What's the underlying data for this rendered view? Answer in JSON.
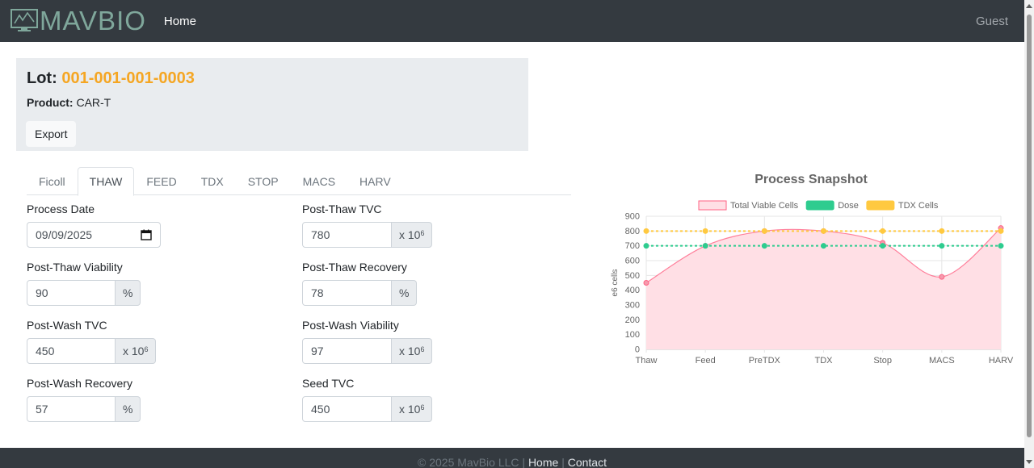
{
  "navbar": {
    "brand": "MAVBIO",
    "home_link": "Home",
    "user": "Guest"
  },
  "lot": {
    "label": "Lot:",
    "number": "001-001-001-0003",
    "product_label": "Product:",
    "product_value": "CAR-T",
    "export_label": "Export"
  },
  "tabs": [
    {
      "label": "Ficoll",
      "active": false
    },
    {
      "label": "THAW",
      "active": true
    },
    {
      "label": "FEED",
      "active": false
    },
    {
      "label": "TDX",
      "active": false
    },
    {
      "label": "STOP",
      "active": false
    },
    {
      "label": "MACS",
      "active": false
    },
    {
      "label": "HARV",
      "active": false
    }
  ],
  "form": {
    "process_date": {
      "label": "Process Date",
      "value": "09/09/2025"
    },
    "post_thaw_tvc": {
      "label": "Post-Thaw TVC",
      "value": "780",
      "unit": "x 10",
      "unit_exp": "6"
    },
    "post_thaw_viability": {
      "label": "Post-Thaw Viability",
      "value": "90",
      "unit": "%"
    },
    "post_thaw_recovery": {
      "label": "Post-Thaw Recovery",
      "value": "78",
      "unit": "%"
    },
    "post_wash_tvc": {
      "label": "Post-Wash TVC",
      "value": "450",
      "unit": "x 10",
      "unit_exp": "6"
    },
    "post_wash_viability": {
      "label": "Post-Wash Viability",
      "value": "97",
      "unit": "x 10",
      "unit_exp": "6"
    },
    "post_wash_recovery": {
      "label": "Post-Wash Recovery",
      "value": "57",
      "unit": "%"
    },
    "seed_tvc": {
      "label": "Seed TVC",
      "value": "450",
      "unit": "x 10",
      "unit_exp": "6"
    }
  },
  "chart_data": {
    "type": "line",
    "title": "Process Snapshot",
    "ylabel": "e6 cells",
    "xlabel": "",
    "categories": [
      "Thaw",
      "Feed",
      "PreTDX",
      "TDX",
      "Stop",
      "MACS",
      "HARV"
    ],
    "ylim": [
      0,
      900
    ],
    "yticks": [
      0,
      100,
      200,
      300,
      400,
      500,
      600,
      700,
      800,
      900
    ],
    "legend_position": "top",
    "grid": true,
    "series": [
      {
        "name": "Total Viable Cells",
        "values": [
          450,
          700,
          800,
          800,
          720,
          490,
          820
        ],
        "color": "#ff6384",
        "fill": "#ffdfe5",
        "style": "solid-filled"
      },
      {
        "name": "Dose",
        "values": [
          700,
          700,
          700,
          700,
          700,
          700,
          700
        ],
        "color": "#2ecc8f",
        "style": "dotted"
      },
      {
        "name": "TDX Cells",
        "values": [
          800,
          800,
          800,
          800,
          800,
          800,
          800
        ],
        "color": "#ffc940",
        "style": "dotted"
      }
    ]
  },
  "footer": {
    "copyright": "© 2025 MavBio LLC |",
    "home": "Home",
    "separator": "|",
    "contact": "Contact"
  }
}
